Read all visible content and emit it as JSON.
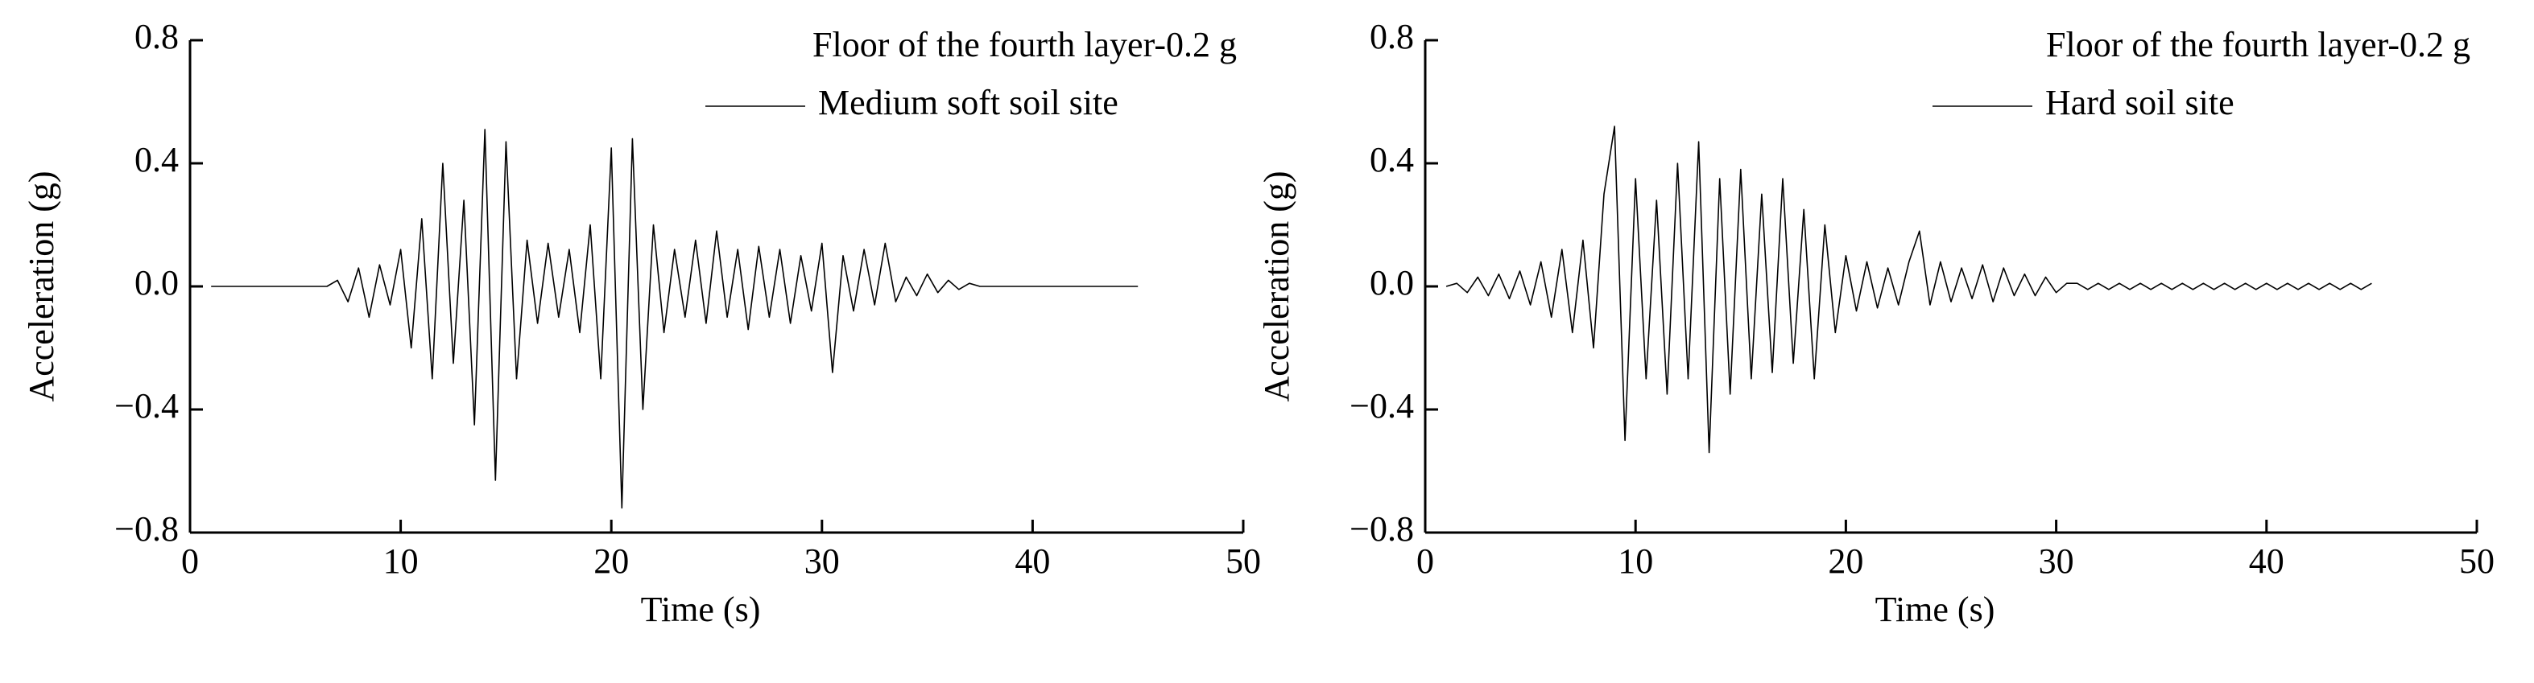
{
  "chart_data": [
    {
      "type": "line",
      "title": "Floor of the fourth layer-0.2 g",
      "xlabel": "Time (s)",
      "ylabel": "Acceleration (g)",
      "x": [
        1,
        1.5,
        2,
        2.5,
        3,
        3.5,
        4,
        4.5,
        5,
        5.5,
        6,
        6.5,
        7,
        7.5,
        8,
        8.5,
        9,
        9.5,
        10,
        10.5,
        11,
        11.5,
        12,
        12.5,
        13,
        13.5,
        14,
        14.5,
        15,
        15.5,
        16,
        16.5,
        17,
        17.5,
        18,
        18.5,
        19,
        19.5,
        20,
        20.5,
        21,
        21.5,
        22,
        22.5,
        23,
        23.5,
        24,
        24.5,
        25,
        25.5,
        26,
        26.5,
        27,
        27.5,
        28,
        28.5,
        29,
        29.5,
        30,
        30.5,
        31,
        31.5,
        32,
        32.5,
        33,
        33.5,
        34,
        34.5,
        35,
        35.5,
        36,
        36.5,
        37,
        37.5,
        38,
        38.5,
        39,
        39.5,
        40,
        40.5,
        41,
        41.5,
        42,
        42.5,
        43,
        43.5,
        44,
        44.5,
        45
      ],
      "series": [
        {
          "name": "Medium soft soil site",
          "color": "#000000",
          "values": [
            0,
            0,
            0,
            0,
            0,
            0,
            0,
            0,
            0,
            0,
            0,
            0,
            0.02,
            -0.05,
            0.06,
            -0.1,
            0.07,
            -0.06,
            0.12,
            -0.2,
            0.22,
            -0.3,
            0.4,
            -0.25,
            0.28,
            -0.45,
            0.51,
            -0.63,
            0.47,
            -0.3,
            0.15,
            -0.12,
            0.14,
            -0.1,
            0.12,
            -0.15,
            0.2,
            -0.3,
            0.45,
            -0.72,
            0.48,
            -0.4,
            0.2,
            -0.15,
            0.12,
            -0.1,
            0.15,
            -0.12,
            0.18,
            -0.1,
            0.12,
            -0.14,
            0.13,
            -0.1,
            0.12,
            -0.12,
            0.1,
            -0.08,
            0.14,
            -0.28,
            0.1,
            -0.08,
            0.12,
            -0.06,
            0.14,
            -0.05,
            0.03,
            -0.03,
            0.04,
            -0.02,
            0.02,
            -0.01,
            0.01,
            0,
            0,
            0,
            0,
            0,
            0,
            0,
            0,
            0,
            0,
            0,
            0,
            0,
            0,
            0,
            0
          ]
        }
      ],
      "xlim": [
        0,
        50
      ],
      "xticks": [
        0,
        10,
        20,
        30,
        40,
        50
      ],
      "ylim": [
        -0.8,
        0.8
      ],
      "yticks": [
        {
          "value": -0.8,
          "label": "−0.8"
        },
        {
          "value": -0.4,
          "label": "−0.4"
        },
        {
          "value": 0,
          "label": "0.0"
        },
        0.4,
        0.8
      ]
    },
    {
      "type": "line",
      "title": "Floor of the fourth layer-0.2 g",
      "xlabel": "Time (s)",
      "ylabel": "Acceleration (g)",
      "x": [
        1,
        1.5,
        2,
        2.5,
        3,
        3.5,
        4,
        4.5,
        5,
        5.5,
        6,
        6.5,
        7,
        7.5,
        8,
        8.5,
        9,
        9.5,
        10,
        10.5,
        11,
        11.5,
        12,
        12.5,
        13,
        13.5,
        14,
        14.5,
        15,
        15.5,
        16,
        16.5,
        17,
        17.5,
        18,
        18.5,
        19,
        19.5,
        20,
        20.5,
        21,
        21.5,
        22,
        22.5,
        23,
        23.5,
        24,
        24.5,
        25,
        25.5,
        26,
        26.5,
        27,
        27.5,
        28,
        28.5,
        29,
        29.5,
        30,
        30.5,
        31,
        31.5,
        32,
        32.5,
        33,
        33.5,
        34,
        34.5,
        35,
        35.5,
        36,
        36.5,
        37,
        37.5,
        38,
        38.5,
        39,
        39.5,
        40,
        40.5,
        41,
        41.5,
        42,
        42.5,
        43,
        43.5,
        44,
        44.5,
        45
      ],
      "series": [
        {
          "name": "Hard soil site",
          "color": "#000000",
          "values": [
            0,
            0.01,
            -0.02,
            0.03,
            -0.03,
            0.04,
            -0.04,
            0.05,
            -0.06,
            0.08,
            -0.1,
            0.12,
            -0.15,
            0.15,
            -0.2,
            0.3,
            0.52,
            -0.5,
            0.35,
            -0.3,
            0.28,
            -0.35,
            0.4,
            -0.3,
            0.47,
            -0.54,
            0.35,
            -0.35,
            0.38,
            -0.3,
            0.3,
            -0.28,
            0.35,
            -0.25,
            0.25,
            -0.3,
            0.2,
            -0.15,
            0.1,
            -0.08,
            0.08,
            -0.07,
            0.06,
            -0.06,
            0.08,
            0.18,
            -0.06,
            0.08,
            -0.05,
            0.06,
            -0.04,
            0.07,
            -0.05,
            0.06,
            -0.03,
            0.04,
            -0.03,
            0.03,
            -0.02,
            0.01,
            0.01,
            -0.01,
            0.01,
            -0.01,
            0.01,
            -0.01,
            0.01,
            -0.01,
            0.01,
            -0.01,
            0.01,
            -0.01,
            0.01,
            -0.01,
            0.01,
            -0.01,
            0.01,
            -0.01,
            0.01,
            -0.01,
            0.01,
            -0.01,
            0.01,
            -0.01,
            0.01,
            -0.01,
            0.01,
            -0.01,
            0.01
          ]
        }
      ],
      "xlim": [
        0,
        50
      ],
      "xticks": [
        0,
        10,
        20,
        30,
        40,
        50
      ],
      "ylim": [
        -0.8,
        0.8
      ],
      "yticks": [
        {
          "value": -0.8,
          "label": "−0.8"
        },
        {
          "value": -0.4,
          "label": "−0.4"
        },
        {
          "value": 0,
          "label": "0.0"
        },
        0.4,
        0.8
      ]
    }
  ]
}
